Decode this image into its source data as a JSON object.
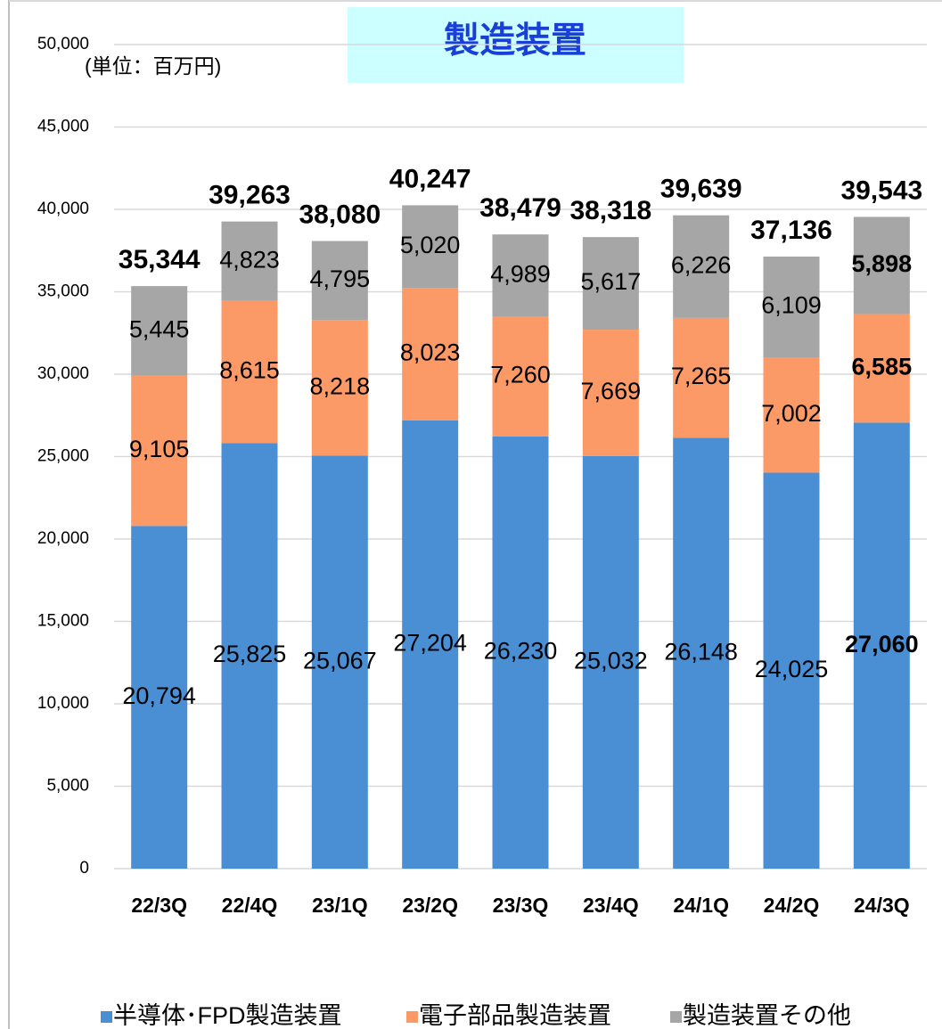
{
  "chart_data": {
    "type": "stacked_bar",
    "title": "製造装置",
    "unit_label": "(単位：百万円)",
    "categories": [
      "22/3Q",
      "22/4Q",
      "23/1Q",
      "23/2Q",
      "23/3Q",
      "23/4Q",
      "24/1Q",
      "24/2Q",
      "24/3Q"
    ],
    "series": [
      {
        "name": "半導体･FPD製造装置",
        "color": "#4a8fd4",
        "values": [
          20794,
          25825,
          25067,
          27204,
          26230,
          25032,
          26148,
          24025,
          27060
        ],
        "value_labels": [
          "20,794",
          "25,825",
          "25,067",
          "27,204",
          "26,230",
          "25,032",
          "26,148",
          "24,025",
          "27,060"
        ]
      },
      {
        "name": "電子部品製造装置",
        "color": "#fc9a67",
        "values": [
          9105,
          8615,
          8218,
          8023,
          7260,
          7669,
          7265,
          7002,
          6585
        ],
        "value_labels": [
          "9,105",
          "8,615",
          "8,218",
          "8,023",
          "7,260",
          "7,669",
          "7,265",
          "7,002",
          "6,585"
        ]
      },
      {
        "name": "製造装置その他",
        "color": "#a6a6a6",
        "values": [
          5445,
          4823,
          4795,
          5020,
          4989,
          5617,
          6226,
          6109,
          5898
        ],
        "value_labels": [
          "5,445",
          "4,823",
          "4,795",
          "5,020",
          "4,989",
          "5,617",
          "6,226",
          "6,109",
          "5,898"
        ]
      }
    ],
    "totals": [
      35344,
      39263,
      38080,
      40247,
      38479,
      38318,
      39639,
      37136,
      39543
    ],
    "total_labels": [
      "35,344",
      "39,263",
      "38,080",
      "40,247",
      "38,479",
      "38,318",
      "39,639",
      "37,136",
      "39,543"
    ],
    "ylim": [
      0,
      50000
    ],
    "yticks": [
      0,
      {
        "value": 5000,
        "label": "5,000"
      },
      {
        "value": 10000,
        "label": "10,000"
      },
      {
        "value": 15000,
        "label": "15,000"
      },
      {
        "value": 20000,
        "label": "20,000"
      },
      {
        "value": 25000,
        "label": "25,000"
      },
      {
        "value": 30000,
        "label": "30,000"
      },
      {
        "value": 35000,
        "label": "35,000"
      },
      {
        "value": 40000,
        "label": "40,000"
      },
      {
        "value": 45000,
        "label": "45,000"
      },
      {
        "value": 50000,
        "label": "50,000"
      }
    ],
    "grid": true,
    "legend": "bottom"
  }
}
